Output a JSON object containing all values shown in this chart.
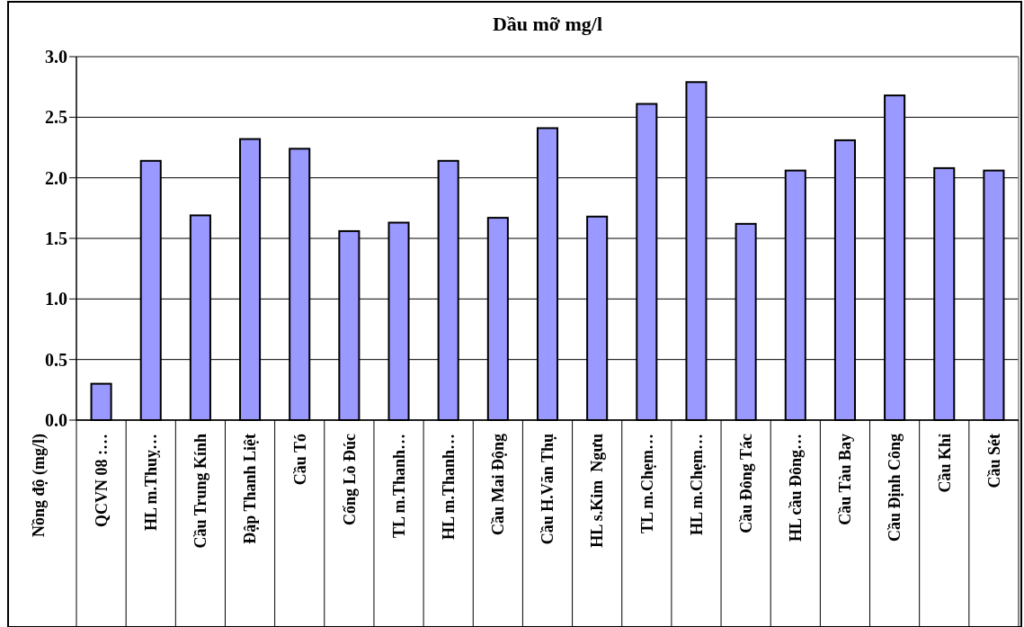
{
  "chart_data": {
    "type": "bar",
    "title": "Dầu mỡ mg/l",
    "ylabel": "Nồng độ (mg/l)",
    "categories": [
      "QCVN 08 :…",
      "HL m.Thuỵ…",
      "Cầu Trung Kính",
      "Đập Thanh Liệt",
      "Cầu Tó",
      "Cống Lò Đúc",
      "TL m.Thanh…",
      "HL m.Thanh…",
      "Cầu Mai Động",
      "Cầu H.Văn Thụ",
      "HL s.Kim  Ngưu",
      "TL m.Chẹm…",
      "HL m.Chẹm…",
      "Cầu Đông Tác",
      "HL cầu Đông…",
      "Cầu Tàu Bay",
      "Cầu Định Công",
      "Cầu Khỉ",
      "Cầu Sét"
    ],
    "values": [
      0.3,
      2.14,
      1.69,
      2.32,
      2.24,
      1.56,
      1.63,
      2.14,
      1.67,
      2.41,
      1.68,
      2.61,
      2.79,
      1.62,
      2.06,
      2.31,
      2.68,
      2.08,
      2.06
    ],
    "color": "#9999ff",
    "ylim": [
      0,
      3
    ],
    "yticks": [
      {
        "value": 0,
        "label": "0.0"
      },
      {
        "value": 0.5,
        "label": "0.5"
      },
      {
        "value": 1,
        "label": "1.0"
      },
      {
        "value": 1.5,
        "label": "1.5"
      },
      {
        "value": 2,
        "label": "2.0"
      },
      {
        "value": 2.5,
        "label": "2.5"
      },
      {
        "value": 3,
        "label": "3.0"
      }
    ],
    "grid": "y"
  }
}
